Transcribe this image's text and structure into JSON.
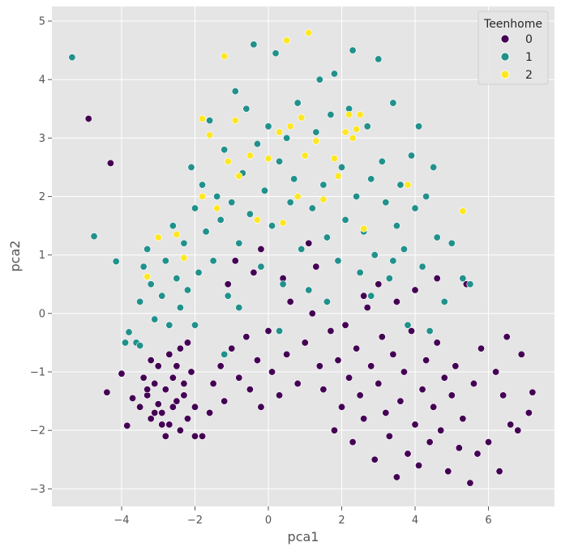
{
  "chart_data": {
    "type": "scatter",
    "title": "",
    "xlabel": "pca1",
    "ylabel": "pca2",
    "xlim": [
      -5.9,
      7.8
    ],
    "ylim": [
      -3.3,
      5.25
    ],
    "x_ticks": [
      -4,
      -2,
      0,
      2,
      4,
      6
    ],
    "y_ticks": [
      -3,
      -2,
      -1,
      0,
      1,
      2,
      3,
      4,
      5
    ],
    "x_tick_labels": [
      "−4",
      "−2",
      "0",
      "2",
      "4",
      "6"
    ],
    "y_tick_labels": [
      "−3",
      "−2",
      "−1",
      "0",
      "1",
      "2",
      "3",
      "4",
      "5"
    ],
    "grid": true,
    "legend": {
      "title": "Teenhome",
      "placement": "top-right",
      "entries": [
        {
          "label": "0",
          "color": "#440154"
        },
        {
          "label": "1",
          "color": "#21918c"
        },
        {
          "label": "2",
          "color": "#fde725"
        }
      ]
    },
    "series": [
      {
        "name": "0",
        "color": "#440154",
        "points": [
          [
            -4.9,
            3.33
          ],
          [
            -4.3,
            2.57
          ],
          [
            -4.0,
            -1.03
          ],
          [
            -4.4,
            -1.35
          ],
          [
            -3.85,
            -1.92
          ],
          [
            -3.7,
            -1.45
          ],
          [
            -3.5,
            -1.6
          ],
          [
            -3.3,
            -1.4
          ],
          [
            -3.2,
            -1.8
          ],
          [
            -3.1,
            -1.2
          ],
          [
            -3.0,
            -1.55
          ],
          [
            -2.9,
            -1.7
          ],
          [
            -2.8,
            -1.3
          ],
          [
            -2.7,
            -1.9
          ],
          [
            -2.6,
            -1.1
          ],
          [
            -2.5,
            -1.5
          ],
          [
            -2.4,
            -2.0
          ],
          [
            -2.3,
            -1.4
          ],
          [
            -2.2,
            -1.8
          ],
          [
            -2.1,
            -1.0
          ],
          [
            -3.4,
            -1.1
          ],
          [
            -3.3,
            -1.3
          ],
          [
            -3.1,
            -1.7
          ],
          [
            -2.9,
            -1.9
          ],
          [
            -2.8,
            -2.1
          ],
          [
            -2.6,
            -1.6
          ],
          [
            -2.5,
            -0.9
          ],
          [
            -2.3,
            -1.2
          ],
          [
            -2.0,
            -1.6
          ],
          [
            -1.8,
            -2.1
          ],
          [
            -3.2,
            -0.8
          ],
          [
            -3.0,
            -0.9
          ],
          [
            -2.7,
            -0.7
          ],
          [
            -2.4,
            -0.6
          ],
          [
            -2.2,
            -0.5
          ],
          [
            -2.0,
            -2.1
          ],
          [
            -1.6,
            -1.7
          ],
          [
            -1.5,
            -1.2
          ],
          [
            -1.3,
            -0.9
          ],
          [
            -1.2,
            -1.5
          ],
          [
            -1.0,
            -0.6
          ],
          [
            -0.8,
            -1.1
          ],
          [
            -0.6,
            -0.4
          ],
          [
            -0.5,
            -1.3
          ],
          [
            -0.3,
            -0.8
          ],
          [
            -0.2,
            -1.6
          ],
          [
            0.0,
            -0.3
          ],
          [
            0.1,
            -1.0
          ],
          [
            0.3,
            -1.4
          ],
          [
            0.5,
            -0.7
          ],
          [
            0.6,
            0.2
          ],
          [
            0.8,
            -1.2
          ],
          [
            1.0,
            -0.5
          ],
          [
            1.2,
            0.0
          ],
          [
            1.4,
            -0.9
          ],
          [
            1.5,
            -1.3
          ],
          [
            1.7,
            -0.3
          ],
          [
            1.8,
            -2.0
          ],
          [
            1.9,
            -0.8
          ],
          [
            2.0,
            -1.6
          ],
          [
            2.1,
            -0.2
          ],
          [
            2.2,
            -1.1
          ],
          [
            2.3,
            -2.2
          ],
          [
            2.4,
            -0.6
          ],
          [
            2.5,
            -1.4
          ],
          [
            2.6,
            -1.8
          ],
          [
            2.7,
            0.1
          ],
          [
            2.8,
            -0.9
          ],
          [
            2.9,
            -2.5
          ],
          [
            3.0,
            -1.2
          ],
          [
            3.1,
            -0.4
          ],
          [
            3.2,
            -1.7
          ],
          [
            3.3,
            -2.1
          ],
          [
            3.4,
            -0.7
          ],
          [
            3.5,
            -2.8
          ],
          [
            3.6,
            -1.5
          ],
          [
            3.7,
            -1.0
          ],
          [
            3.8,
            -2.4
          ],
          [
            3.9,
            -0.3
          ],
          [
            4.0,
            -1.9
          ],
          [
            4.1,
            -2.6
          ],
          [
            4.2,
            -1.3
          ],
          [
            4.3,
            -0.8
          ],
          [
            4.4,
            -2.2
          ],
          [
            4.5,
            -1.6
          ],
          [
            4.6,
            -0.5
          ],
          [
            4.7,
            -2.0
          ],
          [
            4.8,
            -1.1
          ],
          [
            4.9,
            -2.7
          ],
          [
            5.0,
            -1.4
          ],
          [
            5.1,
            -0.9
          ],
          [
            5.2,
            -2.3
          ],
          [
            5.3,
            -1.8
          ],
          [
            5.4,
            0.5
          ],
          [
            5.5,
            -2.9
          ],
          [
            5.6,
            -1.2
          ],
          [
            5.8,
            -0.6
          ],
          [
            6.0,
            -2.2
          ],
          [
            6.2,
            -1.0
          ],
          [
            6.4,
            -1.4
          ],
          [
            6.5,
            -0.4
          ],
          [
            6.6,
            -1.9
          ],
          [
            6.8,
            -2.0
          ],
          [
            6.9,
            -0.7
          ],
          [
            7.1,
            -1.7
          ],
          [
            7.2,
            -1.35
          ],
          [
            6.3,
            -2.7
          ],
          [
            5.7,
            -2.4
          ],
          [
            4.6,
            0.6
          ],
          [
            4.0,
            0.4
          ],
          [
            3.5,
            0.2
          ],
          [
            3.0,
            0.5
          ],
          [
            2.6,
            0.3
          ],
          [
            1.3,
            0.8
          ],
          [
            0.4,
            0.6
          ],
          [
            -0.4,
            0.7
          ],
          [
            -1.1,
            0.5
          ],
          [
            -0.9,
            0.9
          ],
          [
            -0.2,
            1.1
          ],
          [
            1.1,
            1.2
          ]
        ]
      },
      {
        "name": "1",
        "color": "#21918c",
        "points": [
          [
            -5.35,
            4.38
          ],
          [
            -4.75,
            1.32
          ],
          [
            -4.15,
            0.89
          ],
          [
            -3.8,
            -0.32
          ],
          [
            -3.6,
            -0.5
          ],
          [
            -3.5,
            0.2
          ],
          [
            -3.4,
            0.8
          ],
          [
            -3.3,
            1.1
          ],
          [
            -3.2,
            0.5
          ],
          [
            -3.1,
            -0.1
          ],
          [
            -3.0,
            1.3
          ],
          [
            -2.9,
            0.3
          ],
          [
            -2.8,
            0.9
          ],
          [
            -2.7,
            -0.2
          ],
          [
            -2.6,
            1.5
          ],
          [
            -2.5,
            0.6
          ],
          [
            -2.4,
            0.1
          ],
          [
            -2.3,
            1.2
          ],
          [
            -2.2,
            0.4
          ],
          [
            -2.1,
            2.5
          ],
          [
            -2.0,
            1.8
          ],
          [
            -1.9,
            0.7
          ],
          [
            -1.8,
            2.2
          ],
          [
            -1.7,
            1.4
          ],
          [
            -1.6,
            3.3
          ],
          [
            -1.5,
            0.9
          ],
          [
            -1.4,
            2.0
          ],
          [
            -1.3,
            1.6
          ],
          [
            -1.2,
            2.8
          ],
          [
            -1.1,
            0.3
          ],
          [
            -1.0,
            1.9
          ],
          [
            -0.9,
            3.8
          ],
          [
            -0.8,
            1.2
          ],
          [
            -0.7,
            2.4
          ],
          [
            -0.6,
            3.5
          ],
          [
            -0.5,
            1.7
          ],
          [
            -0.4,
            4.6
          ],
          [
            -0.3,
            2.9
          ],
          [
            -0.2,
            0.8
          ],
          [
            -0.1,
            2.1
          ],
          [
            0.0,
            3.2
          ],
          [
            0.1,
            1.5
          ],
          [
            0.2,
            4.45
          ],
          [
            0.3,
            2.6
          ],
          [
            0.4,
            0.5
          ],
          [
            0.5,
            3.0
          ],
          [
            0.6,
            1.9
          ],
          [
            0.7,
            2.3
          ],
          [
            0.8,
            3.6
          ],
          [
            0.9,
            1.1
          ],
          [
            1.0,
            2.7
          ],
          [
            1.1,
            0.4
          ],
          [
            1.2,
            1.8
          ],
          [
            1.3,
            3.1
          ],
          [
            1.4,
            4.0
          ],
          [
            1.5,
            2.2
          ],
          [
            1.6,
            1.3
          ],
          [
            1.7,
            3.4
          ],
          [
            1.8,
            4.1
          ],
          [
            1.9,
            0.9
          ],
          [
            2.0,
            2.5
          ],
          [
            2.1,
            1.6
          ],
          [
            2.2,
            3.5
          ],
          [
            2.3,
            4.5
          ],
          [
            2.4,
            2.0
          ],
          [
            2.5,
            0.7
          ],
          [
            2.6,
            1.4
          ],
          [
            2.7,
            3.2
          ],
          [
            2.8,
            2.3
          ],
          [
            2.9,
            1.0
          ],
          [
            3.0,
            4.35
          ],
          [
            3.1,
            2.6
          ],
          [
            3.2,
            1.9
          ],
          [
            3.3,
            0.6
          ],
          [
            3.4,
            3.6
          ],
          [
            3.5,
            1.5
          ],
          [
            3.6,
            2.2
          ],
          [
            3.7,
            1.1
          ],
          [
            3.8,
            -0.2
          ],
          [
            3.9,
            2.7
          ],
          [
            4.0,
            1.8
          ],
          [
            4.1,
            3.2
          ],
          [
            4.2,
            0.8
          ],
          [
            4.3,
            2.0
          ],
          [
            4.5,
            2.5
          ],
          [
            4.6,
            1.3
          ],
          [
            4.8,
            0.2
          ],
          [
            5.0,
            1.2
          ],
          [
            5.3,
            0.6
          ],
          [
            5.5,
            0.5
          ],
          [
            -3.9,
            -0.5
          ],
          [
            -3.5,
            -0.55
          ],
          [
            -2.0,
            -0.2
          ],
          [
            -1.2,
            -0.7
          ],
          [
            0.3,
            -0.3
          ],
          [
            -0.8,
            0.1
          ],
          [
            1.6,
            0.2
          ],
          [
            2.8,
            0.3
          ],
          [
            4.4,
            -0.3
          ],
          [
            3.4,
            0.9
          ]
        ]
      },
      {
        "name": "2",
        "color": "#fde725",
        "points": [
          [
            -3.3,
            0.63
          ],
          [
            -3.0,
            1.3
          ],
          [
            -2.5,
            1.35
          ],
          [
            -2.3,
            0.95
          ],
          [
            -1.8,
            2.0
          ],
          [
            -1.8,
            3.33
          ],
          [
            -1.6,
            3.05
          ],
          [
            -1.4,
            1.8
          ],
          [
            -1.2,
            4.4
          ],
          [
            -1.1,
            2.6
          ],
          [
            -0.9,
            3.3
          ],
          [
            -0.8,
            2.35
          ],
          [
            -0.5,
            2.7
          ],
          [
            -0.3,
            1.6
          ],
          [
            0.0,
            2.65
          ],
          [
            0.3,
            3.1
          ],
          [
            0.4,
            1.55
          ],
          [
            0.5,
            4.67
          ],
          [
            0.8,
            2.0
          ],
          [
            0.9,
            3.35
          ],
          [
            1.0,
            2.7
          ],
          [
            1.1,
            4.8
          ],
          [
            1.3,
            2.95
          ],
          [
            1.5,
            1.95
          ],
          [
            1.8,
            2.65
          ],
          [
            1.9,
            2.35
          ],
          [
            2.1,
            3.1
          ],
          [
            2.2,
            3.4
          ],
          [
            2.3,
            3.0
          ],
          [
            2.4,
            3.15
          ],
          [
            2.6,
            1.45
          ],
          [
            2.5,
            3.4
          ],
          [
            5.3,
            1.75
          ],
          [
            3.8,
            2.2
          ],
          [
            0.6,
            3.2
          ]
        ]
      }
    ]
  }
}
